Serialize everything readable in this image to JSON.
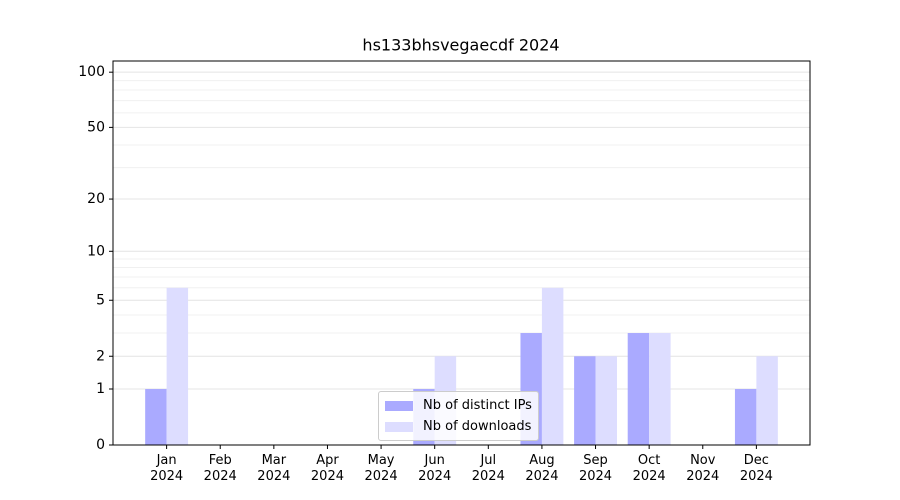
{
  "chart_data": {
    "type": "bar",
    "title": "hs133bhsvegaecdf 2024",
    "categories": [
      "Jan 2024",
      "Feb 2024",
      "Mar 2024",
      "Apr 2024",
      "May 2024",
      "Jun 2024",
      "Jul 2024",
      "Aug 2024",
      "Sep 2024",
      "Oct 2024",
      "Nov 2024",
      "Dec 2024"
    ],
    "series": [
      {
        "name": "Nb of distinct IPs",
        "color": "#aaaaff",
        "values": [
          1,
          0,
          0,
          0,
          0,
          1,
          0,
          3,
          2,
          3,
          0,
          1
        ]
      },
      {
        "name": "Nb of downloads",
        "color": "#ddddff",
        "values": [
          6,
          0,
          0,
          0,
          0,
          2,
          0,
          6,
          2,
          3,
          0,
          2
        ]
      }
    ],
    "yscale": "log1p",
    "ylim": [
      0,
      115
    ],
    "yticks": [
      0,
      1,
      2,
      5,
      10,
      20,
      50,
      100
    ],
    "yminor": [
      3,
      4,
      6,
      7,
      8,
      9,
      30,
      40,
      60,
      70,
      80,
      90
    ],
    "grid": true,
    "legend": "lower center"
  }
}
